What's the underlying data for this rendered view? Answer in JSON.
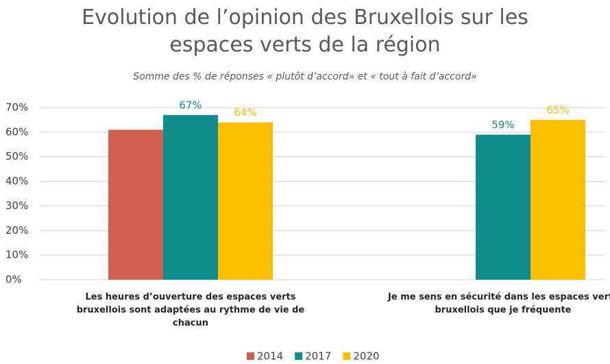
{
  "chart_data": {
    "type": "bar",
    "title": "Evolution de l’opinion des Bruxellois sur les espaces verts de la région",
    "subtitle": "Somme des % de réponses « plutôt d’accord» et « tout à fait d’accord»",
    "categories": [
      "Les heures d’ouverture des espaces verts bruxellois sont adaptées au rythme de vie de chacun",
      "Je me sens en sécurité dans les espaces verts bruxellois que je fréquente"
    ],
    "series": [
      {
        "name": "2014",
        "color": "#d0604f",
        "values": [
          61,
          null
        ]
      },
      {
        "name": "2017",
        "color": "#118c8c",
        "values": [
          67,
          59
        ],
        "value_labels": [
          "67%",
          "59%"
        ]
      },
      {
        "name": "2020",
        "color": "#fbbd00",
        "values": [
          64,
          65
        ],
        "value_labels": [
          "64%",
          "65%"
        ]
      }
    ],
    "ylim": [
      0,
      70
    ],
    "yticks": [
      {
        "value": 0,
        "label": "0%"
      },
      {
        "value": 10,
        "label": "10%"
      },
      {
        "value": 20,
        "label": "20%"
      },
      {
        "value": 30,
        "label": "30%"
      },
      {
        "value": 40,
        "label": "40%"
      },
      {
        "value": 50,
        "label": "50%"
      },
      {
        "value": 60,
        "label": "60%"
      },
      {
        "value": 70,
        "label": "70%"
      }
    ],
    "grid": true,
    "legend": "bottom"
  }
}
